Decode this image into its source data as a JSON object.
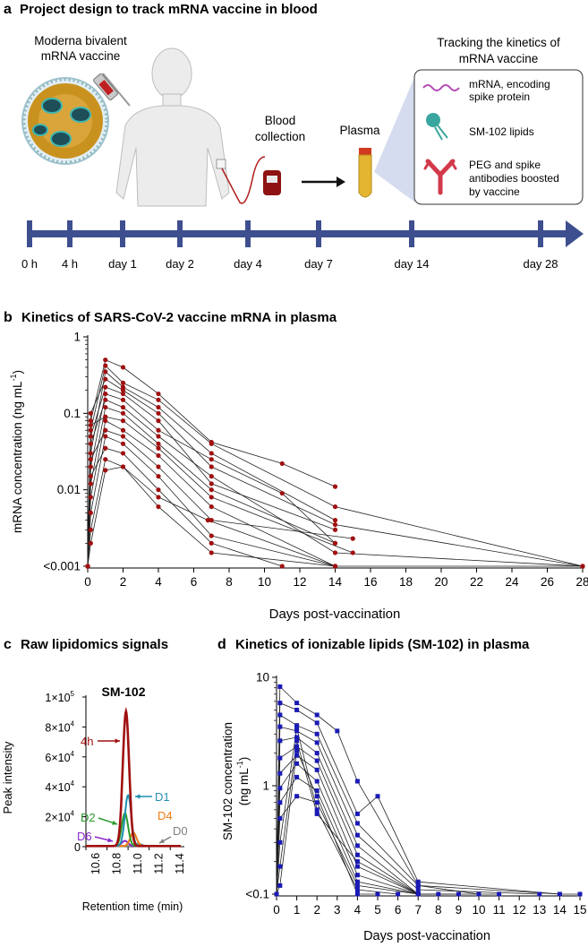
{
  "panel_a": {
    "letter": "a",
    "title": "Project design to track mRNA vaccine in blood",
    "vaccine_label_1": "Moderna bivalent",
    "vaccine_label_2": "mRNA vaccine",
    "blood_label_1": "Blood",
    "blood_label_2": "collection",
    "plasma_label": "Plasma",
    "tracking_title_1": "Tracking the kinetics of",
    "tracking_title_2": "mRNA vaccine",
    "legend": {
      "mrna_1": "mRNA, encoding",
      "mrna_2": "spike protein",
      "lipid": "SM-102 lipids",
      "peg_1": "PEG and spike",
      "peg_2": "antibodies boosted",
      "peg_3": "by vaccine"
    },
    "timeline": [
      "0 h",
      "4 h",
      "day 1",
      "day 2",
      "day 4",
      "day 7",
      "day 14",
      "day 28"
    ],
    "colors": {
      "timeline": "#3e4f8f",
      "blood": "#b01c1c",
      "lipid": "#3aa6a0",
      "antibody": "#d2394a",
      "mrna": "#b44ab4"
    }
  },
  "panel_b": {
    "letter": "b",
    "title": "Kinetics of SARS-CoV-2 vaccine mRNA in plasma",
    "ylabel": "mRNA concentration (ng mL",
    "ylabel_sup": "-1",
    "ylabel_end": ")",
    "xlabel": "Days post-vaccination",
    "yticks": [
      "1",
      "0.1",
      "0.01",
      "<0.001"
    ],
    "xticks": [
      "0",
      "2",
      "4",
      "6",
      "8",
      "10",
      "12",
      "14",
      "16",
      "18",
      "20",
      "22",
      "24",
      "26",
      "28"
    ],
    "color": "#a01010"
  },
  "panel_c": {
    "letter": "c",
    "title": "Raw lipidomics signals",
    "plot_title": "SM-102",
    "ylabel": "Peak intensity",
    "xlabel": "Retention time (min)",
    "yticks": [
      "1×10",
      "8×10",
      "6×10",
      "4×10",
      "2×10",
      "0"
    ],
    "ytick_exp": [
      "5",
      "4",
      "4",
      "4",
      "4",
      ""
    ],
    "xticks": [
      "10.6",
      "10.8",
      "11.0",
      "11.2",
      "11.4"
    ],
    "traces": [
      {
        "label": "4h",
        "peak": 90000,
        "center": 10.98,
        "color": "#a01010"
      },
      {
        "label": "D1",
        "peak": 34000,
        "center": 11.0,
        "color": "#1f8fb0"
      },
      {
        "label": "D2",
        "peak": 22000,
        "center": 10.97,
        "color": "#2a9a2a"
      },
      {
        "label": "D4",
        "peak": 9000,
        "center": 11.05,
        "color": "#f07b12"
      },
      {
        "label": "D6",
        "peak": 3500,
        "center": 10.97,
        "color": "#8a2bc8"
      },
      {
        "label": "D0",
        "peak": 1500,
        "center": 11.1,
        "color": "#808080"
      }
    ]
  },
  "panel_d": {
    "letter": "d",
    "title": "Kinetics of ionizable lipids (SM-102) in plasma",
    "ylabel_1": "SM-102 concentration",
    "ylabel_2": "(ng mL",
    "ylabel_sup": "-1",
    "ylabel_end": ")",
    "xlabel": "Days post-vaccination",
    "yticks": [
      "10",
      "1",
      "<0.1"
    ],
    "xticks": [
      "0",
      "1",
      "2",
      "3",
      "4",
      "5",
      "6",
      "7",
      "8",
      "9",
      "10",
      "11",
      "12",
      "13",
      "14",
      "15"
    ],
    "color": "#1a1ab4"
  },
  "chart_data": [
    {
      "type": "line",
      "title": "Kinetics of SARS-CoV-2 vaccine mRNA in plasma",
      "xlabel": "Days post-vaccination",
      "ylabel": "mRNA concentration (ng mL-1)",
      "yscale": "log",
      "ylim": [
        0.001,
        1
      ],
      "xlim": [
        0,
        28
      ],
      "floor_label": "<0.001",
      "series": [
        {
          "x": [
            0,
            0.17,
            1,
            2,
            4,
            7,
            11,
            14
          ],
          "y": [
            0.001,
            0.08,
            0.5,
            0.4,
            0.18,
            0.042,
            0.022,
            0.011
          ]
        },
        {
          "x": [
            0,
            0.17,
            1,
            2,
            4,
            7,
            14,
            28
          ],
          "y": [
            0.001,
            0.06,
            0.42,
            0.25,
            0.15,
            0.04,
            0.006,
            0.001
          ]
        },
        {
          "x": [
            0,
            0.17,
            1,
            2,
            4,
            7,
            14
          ],
          "y": [
            0.001,
            0.03,
            0.35,
            0.22,
            0.12,
            0.03,
            0.004
          ]
        },
        {
          "x": [
            0,
            0.17,
            1,
            2,
            4,
            7,
            14,
            28
          ],
          "y": [
            0.001,
            0.1,
            0.28,
            0.2,
            0.1,
            0.02,
            0.0035,
            0.001
          ]
        },
        {
          "x": [
            0,
            0.17,
            1,
            2,
            4,
            7,
            14
          ],
          "y": [
            0.001,
            0.05,
            0.22,
            0.18,
            0.08,
            0.012,
            0.003
          ]
        },
        {
          "x": [
            0,
            0.17,
            1,
            2,
            4,
            7,
            11,
            14
          ],
          "y": [
            0.001,
            0.02,
            0.18,
            0.15,
            0.06,
            0.025,
            0.009,
            0.002
          ]
        },
        {
          "x": [
            0,
            0.17,
            1,
            2,
            4,
            7,
            14,
            28
          ],
          "y": [
            0.001,
            0.04,
            0.15,
            0.12,
            0.05,
            0.015,
            0.0015,
            0.001
          ]
        },
        {
          "x": [
            0,
            0.17,
            1,
            2,
            4,
            7,
            14
          ],
          "y": [
            0.001,
            0.012,
            0.12,
            0.1,
            0.04,
            0.01,
            0.002
          ]
        },
        {
          "x": [
            0,
            0.17,
            1,
            2,
            4,
            7,
            15
          ],
          "y": [
            0.001,
            0.07,
            0.09,
            0.08,
            0.035,
            0.008,
            0.0015
          ]
        },
        {
          "x": [
            0,
            0.17,
            1,
            2,
            4,
            7,
            14,
            28
          ],
          "y": [
            0.001,
            0.008,
            0.08,
            0.06,
            0.028,
            0.006,
            0.001,
            0.001
          ]
        },
        {
          "x": [
            0,
            0.17,
            1,
            2,
            4,
            7,
            15
          ],
          "y": [
            0.001,
            0.025,
            0.06,
            0.05,
            0.02,
            0.004,
            0.0023
          ]
        },
        {
          "x": [
            0,
            0.17,
            1,
            2,
            4,
            7,
            14
          ],
          "y": [
            0.001,
            0.005,
            0.05,
            0.04,
            0.015,
            0.0025,
            0.001
          ]
        },
        {
          "x": [
            0,
            0.17,
            1,
            2,
            4,
            7,
            11
          ],
          "y": [
            0.001,
            0.015,
            0.035,
            0.03,
            0.01,
            0.002,
            0.001
          ]
        },
        {
          "x": [
            0,
            0.17,
            1,
            2,
            4,
            7,
            14
          ],
          "y": [
            0.001,
            0.003,
            0.025,
            0.02,
            0.006,
            0.0015,
            0.001
          ]
        },
        {
          "x": [
            0,
            0.17,
            1,
            2,
            4,
            6.8,
            14
          ],
          "y": [
            0.001,
            0.002,
            0.018,
            0.02,
            0.008,
            0.004,
            0.001
          ]
        }
      ]
    },
    {
      "type": "line",
      "title": "Raw lipidomics signals — SM-102",
      "xlabel": "Retention time (min)",
      "ylabel": "Peak intensity",
      "xlim": [
        10.6,
        11.5
      ],
      "ylim": [
        0,
        100000
      ],
      "series": [
        {
          "name": "4h",
          "peak": 90000,
          "center": 10.98
        },
        {
          "name": "D1",
          "peak": 34000,
          "center": 11.0
        },
        {
          "name": "D2",
          "peak": 22000,
          "center": 10.97
        },
        {
          "name": "D4",
          "peak": 9000,
          "center": 11.05
        },
        {
          "name": "D6",
          "peak": 3500,
          "center": 10.97
        },
        {
          "name": "D0",
          "peak": 1500,
          "center": 11.1
        }
      ]
    },
    {
      "type": "line",
      "title": "Kinetics of ionizable lipids (SM-102) in plasma",
      "xlabel": "Days post-vaccination",
      "ylabel": "SM-102 concentration (ng mL-1)",
      "yscale": "log",
      "ylim": [
        0.1,
        10
      ],
      "xlim": [
        0,
        15
      ],
      "floor_label": "<0.1",
      "series": [
        {
          "x": [
            0,
            0.17,
            1,
            2,
            3,
            4,
            7,
            14,
            15
          ],
          "y": [
            0.1,
            8.2,
            5.8,
            4.5,
            3.2,
            1.1,
            0.12,
            0.1,
            0.1
          ]
        },
        {
          "x": [
            0,
            0.17,
            1,
            2,
            4,
            5,
            7,
            14
          ],
          "y": [
            0.1,
            5.8,
            5.0,
            3.8,
            0.55,
            0.8,
            0.13,
            0.1
          ]
        },
        {
          "x": [
            0,
            0.17,
            1,
            2,
            4,
            7,
            10
          ],
          "y": [
            0.1,
            4.5,
            3.6,
            3.0,
            0.45,
            0.12,
            0.1
          ]
        },
        {
          "x": [
            0,
            0.17,
            1,
            2,
            4,
            7,
            13
          ],
          "y": [
            0.1,
            3.5,
            3.2,
            2.5,
            0.35,
            0.11,
            0.1
          ]
        },
        {
          "x": [
            0,
            0.17,
            1,
            2,
            4,
            7,
            8
          ],
          "y": [
            0.1,
            2.6,
            2.8,
            2.0,
            0.28,
            0.1,
            0.1
          ]
        },
        {
          "x": [
            0,
            0.17,
            1,
            2,
            4,
            7,
            11
          ],
          "y": [
            0.1,
            1.8,
            2.3,
            1.7,
            0.23,
            0.1,
            0.1
          ]
        },
        {
          "x": [
            0,
            0.17,
            1,
            2,
            4,
            7,
            9
          ],
          "y": [
            0.1,
            1.3,
            1.9,
            1.4,
            0.18,
            0.1,
            0.1
          ]
        },
        {
          "x": [
            0,
            0.17,
            1,
            2,
            4,
            7
          ],
          "y": [
            0.1,
            0.95,
            1.6,
            1.1,
            0.15,
            0.1
          ]
        },
        {
          "x": [
            0,
            0.17,
            1,
            2,
            4,
            7
          ],
          "y": [
            0.1,
            0.7,
            1.2,
            0.9,
            0.13,
            0.1
          ]
        },
        {
          "x": [
            0,
            0.17,
            1,
            2,
            4,
            7
          ],
          "y": [
            0.1,
            0.5,
            0.8,
            0.7,
            0.12,
            0.1
          ]
        },
        {
          "x": [
            0,
            0.17,
            1,
            2,
            4,
            6
          ],
          "y": [
            0.1,
            0.3,
            3.4,
            0.6,
            0.11,
            0.1
          ]
        },
        {
          "x": [
            0,
            0.17,
            1,
            2,
            4,
            7
          ],
          "y": [
            0.1,
            0.18,
            2.6,
            0.55,
            0.2,
            0.1
          ]
        },
        {
          "x": [
            0,
            0.17,
            1,
            2,
            4,
            5
          ],
          "y": [
            0.1,
            0.12,
            2.1,
            0.8,
            0.1,
            0.1
          ]
        }
      ]
    }
  ]
}
